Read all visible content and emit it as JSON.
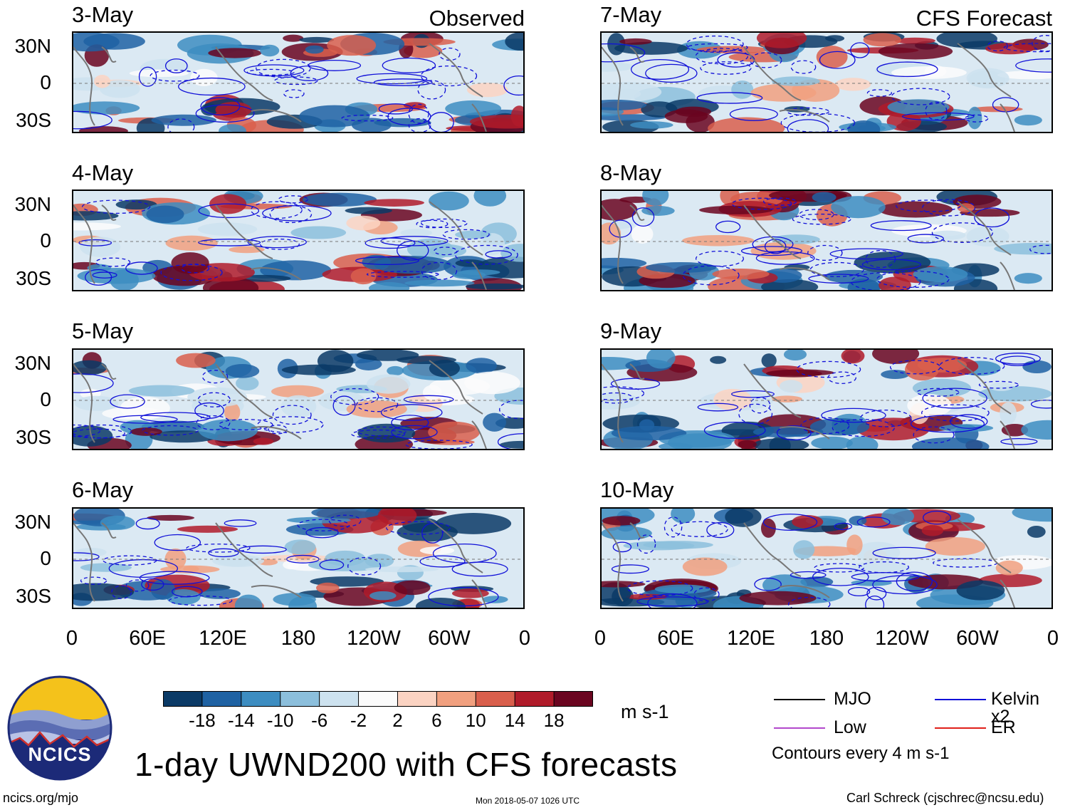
{
  "header": {
    "observed_label": "Observed",
    "forecast_label": "CFS Forecast"
  },
  "panels": {
    "observed": [
      {
        "date": "3-May"
      },
      {
        "date": "4-May"
      },
      {
        "date": "5-May"
      },
      {
        "date": "6-May"
      }
    ],
    "forecast": [
      {
        "date": "7-May"
      },
      {
        "date": "8-May"
      },
      {
        "date": "9-May"
      },
      {
        "date": "10-May"
      }
    ]
  },
  "axes": {
    "lat_labels": [
      "30N",
      "0",
      "30S"
    ],
    "lon_labels": [
      "0",
      "60E",
      "120E",
      "180",
      "120W",
      "60W",
      "0"
    ]
  },
  "colorbar": {
    "labels": [
      "-18",
      "-14",
      "-10",
      "-6",
      "-2",
      "2",
      "6",
      "10",
      "14",
      "18"
    ],
    "units": "m s-1",
    "colors": [
      "#0b3a66",
      "#1f62a3",
      "#3d8dc1",
      "#8cbfdc",
      "#cde2ef",
      "#fbfbfb",
      "#fbd3c2",
      "#f1a07f",
      "#d95f4c",
      "#b01b2a",
      "#6a0520"
    ]
  },
  "legend": {
    "items": [
      {
        "label": "MJO",
        "color": "#000000"
      },
      {
        "label": "Kelvin x2",
        "color": "#1010d8"
      },
      {
        "label": "Low",
        "color": "#b248cc"
      },
      {
        "label": "ER",
        "color": "#e0201a"
      }
    ],
    "contour_note": "Contours every 4 m s-1"
  },
  "title": "1-day UWND200 with CFS forecasts",
  "logo": {
    "text": "NCICS"
  },
  "footer": {
    "url": "ncics.org/mjo",
    "timestamp": "Mon 2018-05-07 1026 UTC",
    "author": "Carl Schreck (cjschrec@ncsu.edu)"
  }
}
